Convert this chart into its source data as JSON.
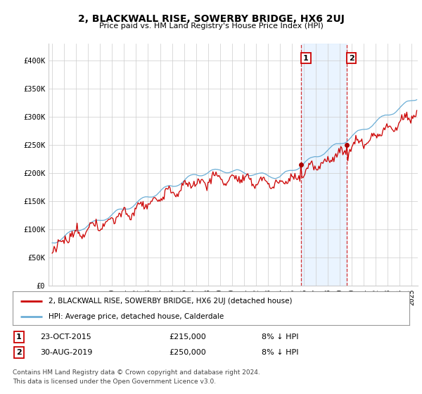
{
  "title": "2, BLACKWALL RISE, SOWERBY BRIDGE, HX6 2UJ",
  "subtitle": "Price paid vs. HM Land Registry's House Price Index (HPI)",
  "ylim": [
    0,
    420000
  ],
  "yticks": [
    0,
    50000,
    100000,
    150000,
    200000,
    250000,
    300000,
    350000,
    400000
  ],
  "ytick_labels": [
    "£0",
    "£50K",
    "£100K",
    "£150K",
    "£200K",
    "£250K",
    "£300K",
    "£350K",
    "£400K"
  ],
  "hpi_color": "#6baed6",
  "price_color": "#cc0000",
  "sale1_year": 2015.79,
  "sale1_price": 215000,
  "sale2_year": 2019.58,
  "sale2_price": 250000,
  "legend_label1": "2, BLACKWALL RISE, SOWERBY BRIDGE, HX6 2UJ (detached house)",
  "legend_label2": "HPI: Average price, detached house, Calderdale",
  "footer1": "Contains HM Land Registry data © Crown copyright and database right 2024.",
  "footer2": "This data is licensed under the Open Government Licence v3.0.",
  "bg_color": "#ffffff",
  "grid_color": "#cccccc",
  "shaded_color": "#ddeeff",
  "xstart": 1995,
  "xend": 2025
}
